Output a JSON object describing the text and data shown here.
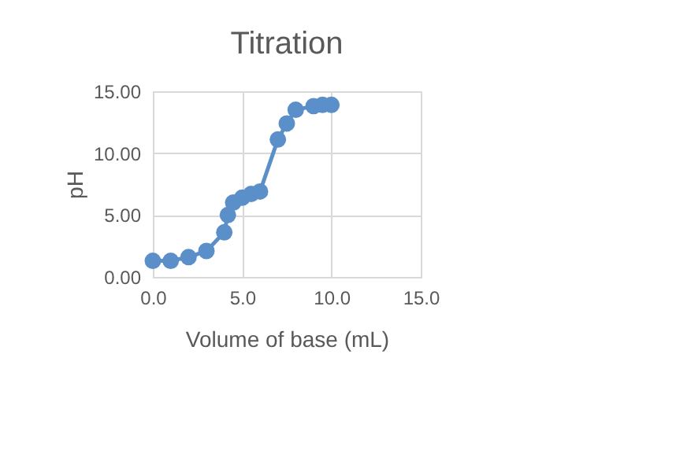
{
  "chart_data": {
    "type": "line",
    "title": "Titration",
    "xlabel": "Volume of base (mL)",
    "ylabel": "pH",
    "x": [
      0,
      1,
      2,
      3,
      4,
      4.2,
      4.5,
      5,
      5.5,
      6,
      7,
      7.5,
      8,
      9,
      9.5,
      10
    ],
    "series": [
      {
        "color": "#5b8fc9",
        "values": [
          1.3,
          1.3,
          1.6,
          2.1,
          3.6,
          5.0,
          6.0,
          6.4,
          6.7,
          6.9,
          11.1,
          12.4,
          13.5,
          13.8,
          13.9,
          13.9
        ]
      }
    ],
    "xlim": [
      0,
      15
    ],
    "xticks": [
      {
        "value": 0,
        "label": "0.0"
      },
      {
        "value": 5,
        "label": "5.0"
      },
      {
        "value": 10,
        "label": "10.0"
      },
      {
        "value": 15,
        "label": "15.0"
      }
    ],
    "ylim": [
      0,
      15
    ],
    "yticks": [
      {
        "value": 0,
        "label": "0.00"
      },
      {
        "value": 5,
        "label": "5.00"
      },
      {
        "value": 10,
        "label": "10.00"
      },
      {
        "value": 15,
        "label": "15.00"
      }
    ],
    "grid": true,
    "marker": "circle",
    "line_style": "solid"
  }
}
